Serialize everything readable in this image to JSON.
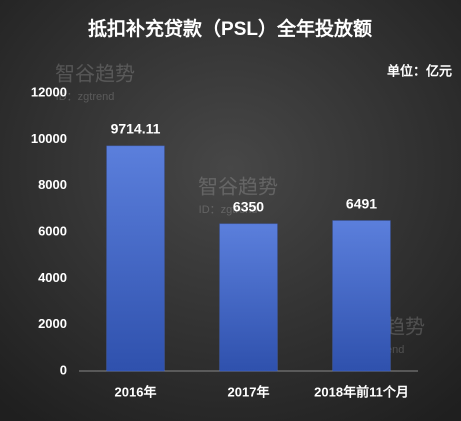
{
  "chart_data": {
    "type": "bar",
    "title": "抵扣补充贷款（PSL）全年投放额",
    "unit": "单位：亿元",
    "watermark": [
      "智谷趋势",
      "ID：zgtrend"
    ],
    "categories": [
      "2016年",
      "2017年",
      "2018年前11个月"
    ],
    "values": [
      9714.11,
      6350,
      6491
    ],
    "color": "#4469cc",
    "ylim": [
      0,
      12000
    ],
    "yticks": [
      0,
      2000,
      4000,
      6000,
      8000,
      10000,
      12000
    ],
    "grid": false
  }
}
